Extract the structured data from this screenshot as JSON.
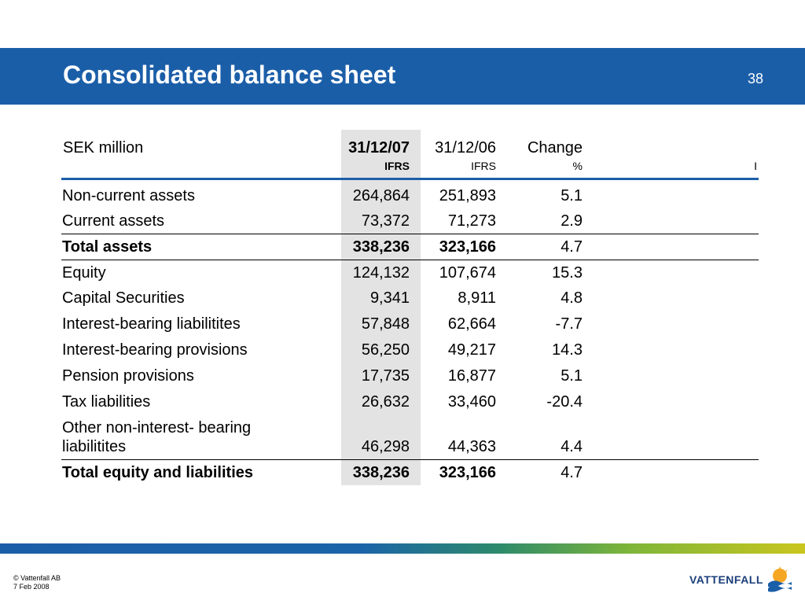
{
  "slide": {
    "title": "Consolidated balance sheet",
    "page_number": "38"
  },
  "table": {
    "unit_label": "SEK million",
    "columns": [
      {
        "header": "31/12/07",
        "sub": "IFRS"
      },
      {
        "header": "31/12/06",
        "sub": "IFRS"
      },
      {
        "header": "Change",
        "sub": "%"
      },
      {
        "header": "",
        "sub": "I"
      }
    ],
    "rows": [
      {
        "label": "Non-current assets",
        "v1": "264,864",
        "v2": "251,893",
        "v3": "5.1"
      },
      {
        "label": "Current assets",
        "v1": "73,372",
        "v2": "71,273",
        "v3": "2.9"
      },
      {
        "label": "Total assets",
        "v1": "338,236",
        "v2": "323,166",
        "v3": "4.7"
      },
      {
        "label": "Equity",
        "v1": "124,132",
        "v2": "107,674",
        "v3": "15.3"
      },
      {
        "label": "Capital Securities",
        "v1": "9,341",
        "v2": "8,911",
        "v3": "4.8"
      },
      {
        "label": "Interest-bearing liabilitites",
        "v1": "57,848",
        "v2": "62,664",
        "v3": "-7.7"
      },
      {
        "label": "Interest-bearing provisions",
        "v1": "56,250",
        "v2": "49,217",
        "v3": "14.3"
      },
      {
        "label": "Pension provisions",
        "v1": "17,735",
        "v2": "16,877",
        "v3": "5.1"
      },
      {
        "label": "Tax liabilities",
        "v1": "26,632",
        "v2": "33,460",
        "v3": "-20.4"
      },
      {
        "label": "Other non-interest- bearing liabilitites",
        "v1": "46,298",
        "v2": "44,363",
        "v3": "4.4"
      },
      {
        "label": "Total equity and liabilities",
        "v1": "338,236",
        "v2": "323,166",
        "v3": "4.7"
      }
    ]
  },
  "footer": {
    "copyright": "© Vattenfall AB",
    "date": "7 Feb 2008"
  },
  "logo": {
    "text": "VATTENFALL",
    "icon": "vattenfall-logo-icon"
  },
  "colors": {
    "brand_blue": "#1b5ea8",
    "highlight_gray": "#e3e3e3",
    "logo_yellow": "#f5a623"
  }
}
